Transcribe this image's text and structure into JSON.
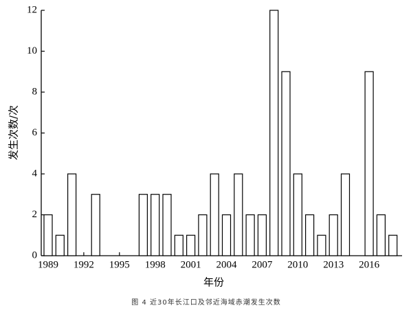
{
  "chart_data": {
    "type": "bar",
    "caption": "图 4 近30年长江口及邻近海域赤潮发生次数",
    "x_label": "年份",
    "y_label": "发生次数/次",
    "categories": [
      "1989",
      null,
      null,
      "1992",
      null,
      null,
      "1995",
      null,
      null,
      "1998",
      null,
      null,
      "2001",
      null,
      null,
      "2004",
      null,
      null,
      "2007",
      null,
      null,
      "2010",
      null,
      null,
      "2013",
      null,
      null,
      "2016",
      null,
      null
    ],
    "values": [
      2,
      1,
      4,
      0,
      3,
      0,
      0,
      0,
      3,
      3,
      3,
      1,
      1,
      2,
      4,
      2,
      4,
      2,
      2,
      12,
      9,
      4,
      2,
      1,
      2,
      4,
      0,
      9,
      2,
      1
    ],
    "color": "#ffffff",
    "ylim": [
      0,
      12
    ],
    "yticks": [
      0,
      2,
      4,
      6,
      8,
      10,
      12
    ]
  }
}
